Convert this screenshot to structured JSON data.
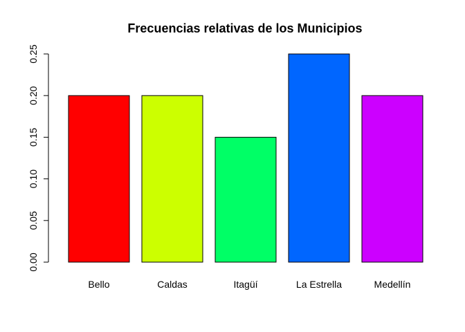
{
  "chart_data": {
    "type": "bar",
    "title": "Frecuencias relativas de los Municipios",
    "xlabel": "",
    "ylabel": "",
    "categories": [
      "Bello",
      "Caldas",
      "Itagüí",
      "La Estrella",
      "Medellín"
    ],
    "values": [
      0.2,
      0.2,
      0.15,
      0.25,
      0.2
    ],
    "colors": [
      "#FF0000",
      "#CCFF00",
      "#00FF66",
      "#0066FF",
      "#CC00FF"
    ],
    "ylim": [
      0,
      0.25
    ],
    "yticks": [
      {
        "value": 0.0,
        "label": "0.00"
      },
      {
        "value": 0.05,
        "label": "0.05"
      },
      {
        "value": 0.1,
        "label": "0.10"
      },
      {
        "value": 0.15,
        "label": "0.15"
      },
      {
        "value": 0.2,
        "label": "0.20"
      },
      {
        "value": 0.25,
        "label": "0.25"
      }
    ],
    "grid": false,
    "legend": "none"
  }
}
